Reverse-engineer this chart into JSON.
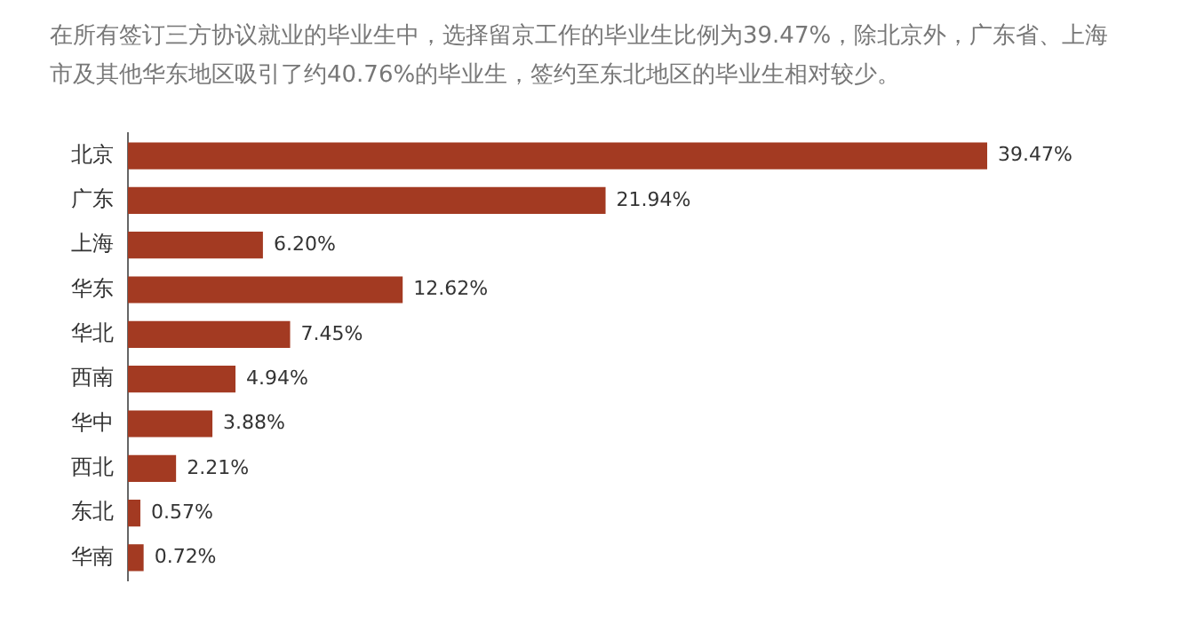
{
  "chart_data": {
    "type": "bar",
    "orientation": "horizontal",
    "title": "在所有签订三方协议就业的毕业生中，选择留京工作的毕业生比例为39.47%，除北京外，广东省、上海市及其他华东地区吸引了约40.76%的毕业生，签约至东北地区的毕业生相对较少。",
    "categories": [
      "北京",
      "广东",
      "上海",
      "华东",
      "华北",
      "西南",
      "华中",
      "西北",
      "东北",
      "华南"
    ],
    "values": [
      39.47,
      21.94,
      6.2,
      12.62,
      7.45,
      4.94,
      3.88,
      2.21,
      0.57,
      0.72
    ],
    "value_labels": [
      "39.47%",
      "21.94%",
      "6.20%",
      "12.62%",
      "7.45%",
      "4.94%",
      "3.88%",
      "2.21%",
      "0.57%",
      "0.72%"
    ],
    "color": "#a33a22",
    "tick_labels": "y",
    "grid": false,
    "legend": false
  }
}
